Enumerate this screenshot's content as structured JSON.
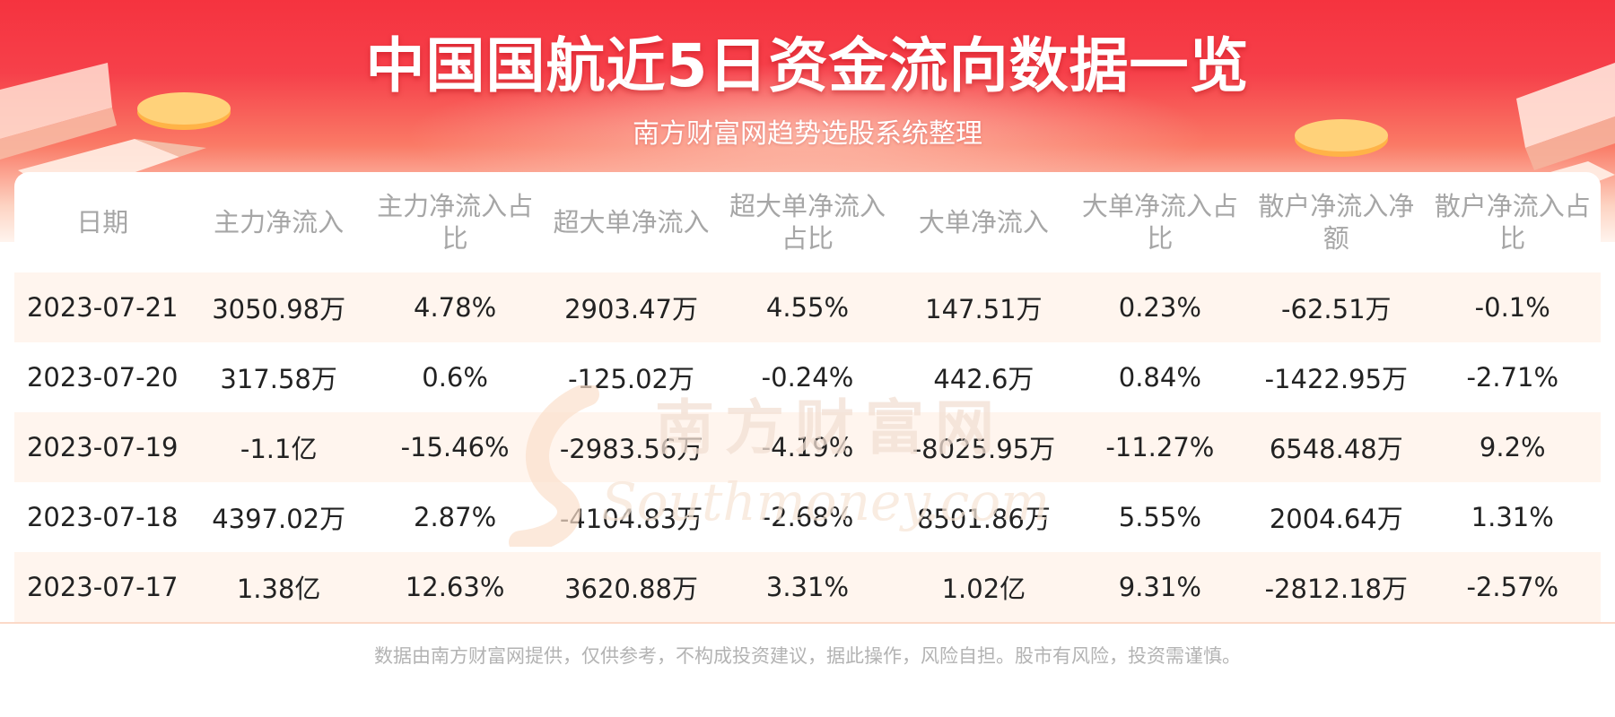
{
  "header": {
    "title": "中国国航近5日资金流向数据一览",
    "subtitle": "南方财富网趋势选股系统整理"
  },
  "watermark": {
    "cn": "南方财富网",
    "en": "Southmoney.com"
  },
  "chart_data": {
    "type": "table",
    "columns": [
      "日期",
      "主力净流入",
      "主力净流入占比",
      "超大单净流入",
      "超大单净流入占比",
      "大单净流入",
      "大单净流入占比",
      "散户净流入净额",
      "散户净流入占比"
    ],
    "rows": [
      [
        "2023-07-21",
        "3050.98万",
        "4.78%",
        "2903.47万",
        "4.55%",
        "147.51万",
        "0.23%",
        "-62.51万",
        "-0.1%"
      ],
      [
        "2023-07-20",
        "317.58万",
        "0.6%",
        "-125.02万",
        "-0.24%",
        "442.6万",
        "0.84%",
        "-1422.95万",
        "-2.71%"
      ],
      [
        "2023-07-19",
        "-1.1亿",
        "-15.46%",
        "-2983.56万",
        "-4.19%",
        "-8025.95万",
        "-11.27%",
        "6548.48万",
        "9.2%"
      ],
      [
        "2023-07-18",
        "4397.02万",
        "2.87%",
        "-4104.83万",
        "-2.68%",
        "8501.86万",
        "5.55%",
        "2004.64万",
        "1.31%"
      ],
      [
        "2023-07-17",
        "1.38亿",
        "12.63%",
        "3620.88万",
        "3.31%",
        "1.02亿",
        "9.31%",
        "-2812.18万",
        "-2.57%"
      ]
    ]
  },
  "footer": {
    "disclaimer": "数据由南方财富网提供，仅供参考，不构成投资建议，据此操作，风险自担。股市有风险，投资需谨慎。"
  },
  "colors": {
    "banner_red": "#f5333f",
    "header_text": "#a6a6a6",
    "cell_text": "#222222",
    "stripe": "#fff3eb",
    "footer_text": "#b3b3b3"
  }
}
